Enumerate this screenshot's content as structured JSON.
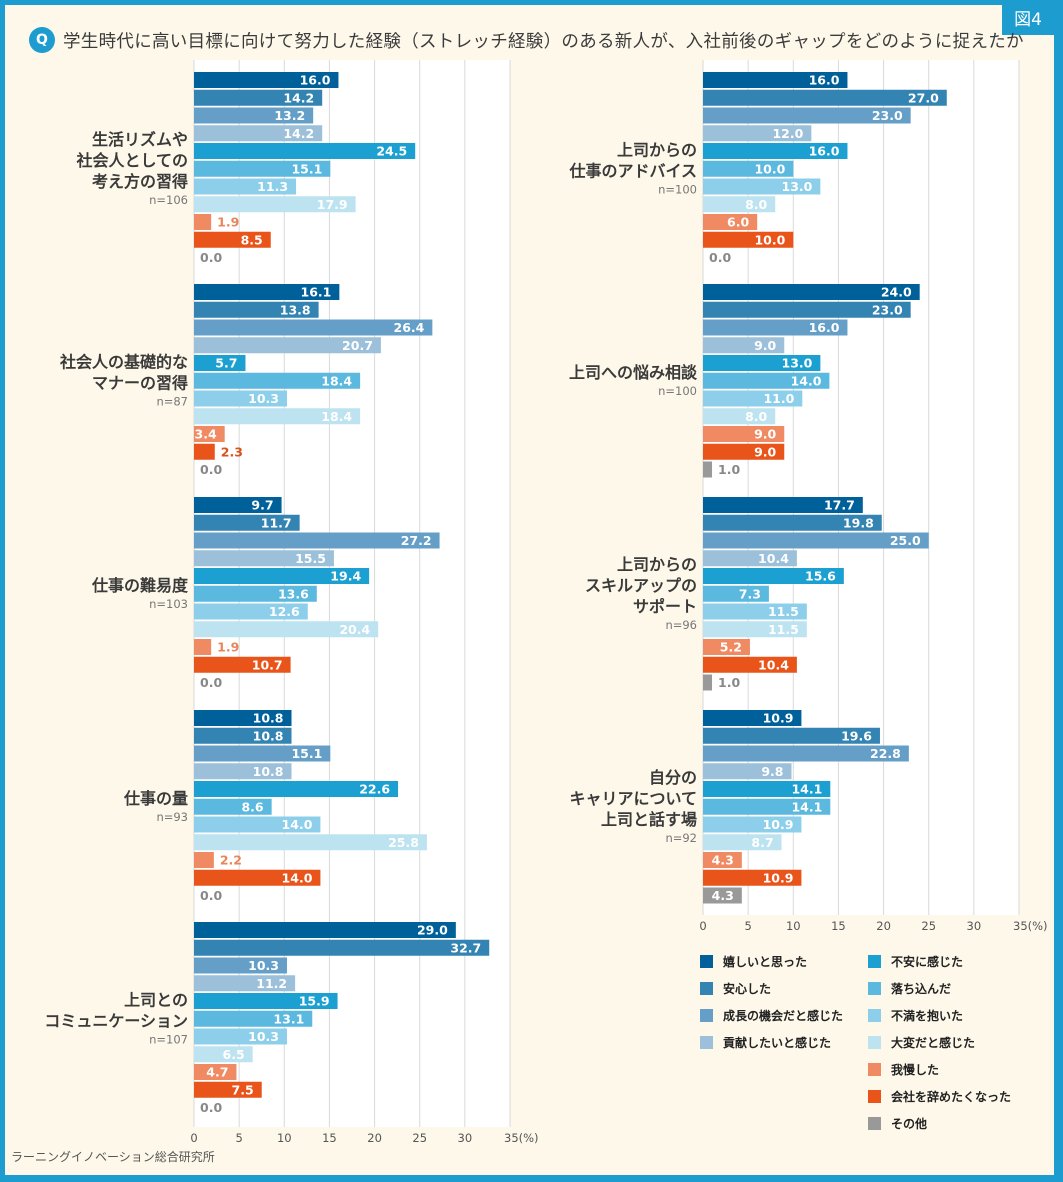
{
  "figure_tab": "図4",
  "title_badge": "Q",
  "title": "学生時代に高い目標に向けて努力した経験（ストレッチ経験）のある新人が、入社前後のギャップをどのように捉えたか",
  "source": "ラーニングイノベーション総合研究所",
  "colors": {
    "frame": "#1d9ccf",
    "background": "#fdf8ea",
    "plot_background": "#ffffff",
    "grid": "#d9d9d9"
  },
  "chart_data": {
    "type": "bar",
    "orientation": "horizontal",
    "title": "学生時代に高い目標に向けて努力した経験（ストレッチ経験）のある新人が、入社前後のギャップをどのように捉えたか",
    "xlabel": "(%)",
    "xlim": [
      0,
      35
    ],
    "xticks": [
      "0",
      "5",
      "10",
      "15",
      "20",
      "25",
      "30",
      "35(%)"
    ],
    "grid": true,
    "legend_position": "bottom-right",
    "series": [
      {
        "name": "嬉しいと思った",
        "color": "#00609a"
      },
      {
        "name": "安心した",
        "color": "#3383b3"
      },
      {
        "name": "成長の機会だと感じた",
        "color": "#659fc8"
      },
      {
        "name": "貢献したいと感じた",
        "color": "#9cc0da"
      },
      {
        "name": "不安に感じた",
        "color": "#1ba0d1"
      },
      {
        "name": "落ち込んだ",
        "color": "#5bb8de"
      },
      {
        "name": "不満を抱いた",
        "color": "#8dcfea"
      },
      {
        "name": "大変だと感じた",
        "color": "#bde3f1"
      },
      {
        "name": "我慢した",
        "color": "#f08a62"
      },
      {
        "name": "会社を辞めたくなった",
        "color": "#e8541a"
      },
      {
        "name": "その他",
        "color": "#999999"
      }
    ],
    "panels": [
      {
        "name": "left",
        "groups": [
          {
            "label": [
              "生活リズムや",
              "社会人としての",
              "考え方の習得"
            ],
            "n": "n=106",
            "values": [
              16.0,
              14.2,
              13.2,
              14.2,
              24.5,
              15.1,
              11.3,
              17.9,
              1.9,
              8.5,
              0.0
            ]
          },
          {
            "label": [
              "社会人の基礎的な",
              "マナーの習得"
            ],
            "n": "n=87",
            "values": [
              16.1,
              13.8,
              26.4,
              20.7,
              5.7,
              18.4,
              10.3,
              18.4,
              3.4,
              2.3,
              0.0
            ]
          },
          {
            "label": [
              "仕事の難易度"
            ],
            "n": "n=103",
            "values": [
              9.7,
              11.7,
              27.2,
              15.5,
              19.4,
              13.6,
              12.6,
              20.4,
              1.9,
              10.7,
              0.0
            ]
          },
          {
            "label": [
              "仕事の量"
            ],
            "n": "n=93",
            "values": [
              10.8,
              10.8,
              15.1,
              10.8,
              22.6,
              8.6,
              14.0,
              25.8,
              2.2,
              14.0,
              0.0
            ]
          },
          {
            "label": [
              "上司との",
              "コミュニケーション"
            ],
            "n": "n=107",
            "values": [
              29.0,
              32.7,
              10.3,
              11.2,
              15.9,
              13.1,
              10.3,
              6.5,
              4.7,
              7.5,
              0.0
            ]
          }
        ]
      },
      {
        "name": "right",
        "groups": [
          {
            "label": [
              "上司からの",
              "仕事のアドバイス"
            ],
            "n": "n=100",
            "values": [
              16.0,
              27.0,
              23.0,
              12.0,
              16.0,
              10.0,
              13.0,
              8.0,
              6.0,
              10.0,
              0.0
            ]
          },
          {
            "label": [
              "上司への悩み相談"
            ],
            "n": "n=100",
            "values": [
              24.0,
              23.0,
              16.0,
              9.0,
              13.0,
              14.0,
              11.0,
              8.0,
              9.0,
              9.0,
              1.0
            ]
          },
          {
            "label": [
              "上司からの",
              "スキルアップの",
              "サポート"
            ],
            "n": "n=96",
            "values": [
              17.7,
              19.8,
              25.0,
              10.4,
              15.6,
              7.3,
              11.5,
              11.5,
              5.2,
              10.4,
              1.0
            ]
          },
          {
            "label": [
              "自分の",
              "キャリアについて",
              "上司と話す場"
            ],
            "n": "n=92",
            "values": [
              10.9,
              19.6,
              22.8,
              9.8,
              14.1,
              14.1,
              10.9,
              8.7,
              4.3,
              10.9,
              4.3
            ]
          }
        ]
      }
    ]
  },
  "legend": {
    "columns": [
      [
        "嬉しいと思った",
        "安心した",
        "成長の機会だと感じた",
        "貢献したいと感じた"
      ],
      [
        "不安に感じた",
        "落ち込んだ",
        "不満を抱いた",
        "大変だと感じた",
        "我慢した",
        "会社を辞めたくなった",
        "その他"
      ]
    ]
  }
}
